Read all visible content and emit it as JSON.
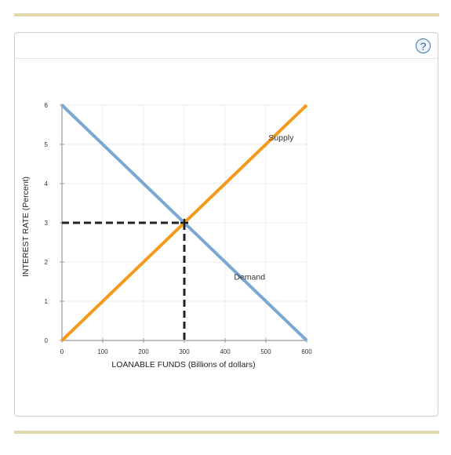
{
  "help_button": {
    "label": "?"
  },
  "chart_data": {
    "type": "line",
    "xlabel": "LOANABLE FUNDS (Billions of dollars)",
    "ylabel": "INTEREST RATE (Percent)",
    "xlim": [
      0,
      600
    ],
    "ylim": [
      0,
      6
    ],
    "x_ticks": [
      0,
      100,
      200,
      300,
      400,
      500,
      600
    ],
    "y_ticks": [
      0,
      1,
      2,
      3,
      4,
      5,
      6
    ],
    "grid": true,
    "series": [
      {
        "name": "Supply",
        "x": [
          0,
          600
        ],
        "y": [
          0,
          6
        ],
        "color": "#f39a1a"
      },
      {
        "name": "Demand",
        "x": [
          0,
          600
        ],
        "y": [
          6,
          0
        ],
        "color": "#7aa7d4"
      }
    ],
    "equilibrium": {
      "x": 300,
      "y": 3
    },
    "guide_color": "#222222"
  }
}
